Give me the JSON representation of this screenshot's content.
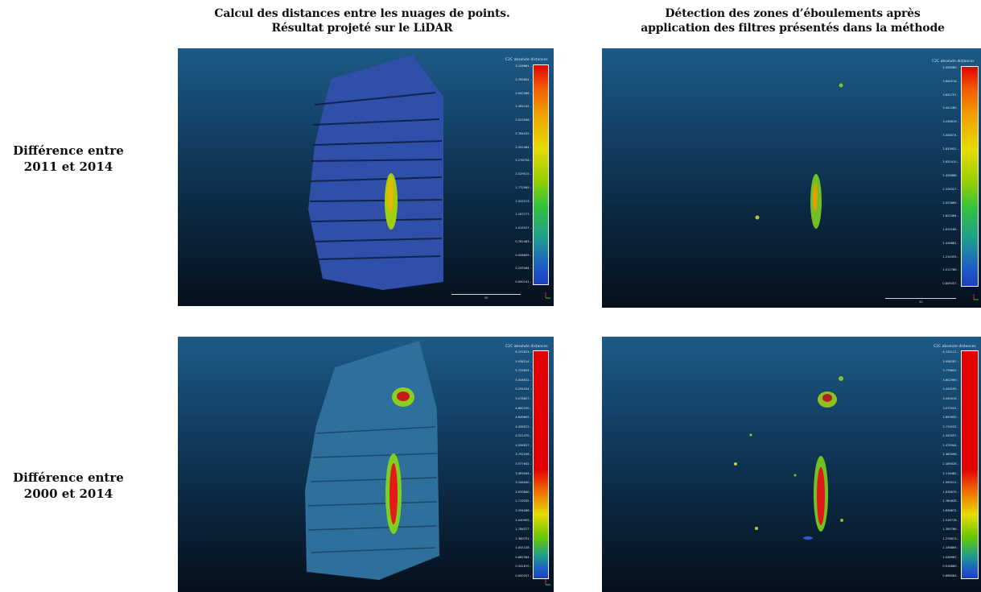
{
  "columns": [
    {
      "line1": "Calcul des distances entre les nuages de points.",
      "line2": "Résultat projeté sur le LiDAR"
    },
    {
      "line1": "Détection des zones d’éboulements après",
      "line2": "application des filtres présentés dans la méthode"
    }
  ],
  "rows": [
    {
      "line1": "Différence entre",
      "line2": "2011 et 2014"
    },
    {
      "line1": "Différence entre",
      "line2": "2000 et 2014"
    }
  ],
  "panels": [
    {
      "legend_title": "C2C absolute distances",
      "scale_label": "50",
      "ticks": [
        "3.146881",
        "2.785804",
        "2.542366",
        "2.281142",
        "2.023556",
        "2.784432",
        "2.552464",
        "2.278756",
        "2.029515",
        "1.772085",
        "1.525213",
        "1.267177",
        "1.014527",
        "0.761483",
        "0.508859",
        "0.255564",
        "0.000141"
      ]
    },
    {
      "legend_title": "C2C absolute distances",
      "scale_label": "50",
      "ticks": [
        "4.058585",
        "3.840216",
        "3.631757",
        "3.441285",
        "3.238619",
        "3.036074",
        "2.833952",
        "2.631410",
        "2.428868",
        "2.226327",
        "2.023865",
        "1.821464",
        "1.619165",
        "1.416881",
        "1.214333",
        "1.011786",
        "0.809257"
      ]
    },
    {
      "legend_title": "C2C absolute distances",
      "scale_label": "50",
      "ticks": [
        "6.152813",
        "5.938214",
        "5.725624",
        "5.508932",
        "5.294424",
        "5.078827",
        "4.862250",
        "4.646605",
        "4.436022",
        "4.221470",
        "4.096837",
        "3.792256",
        "3.577642",
        "3.363044",
        "3.148440",
        "2.933840",
        "2.719235",
        "2.294286",
        "2.040905",
        "1.786377",
        "1.360751",
        "1.001128",
        "0.681584",
        "0.341870",
        "0.000257"
      ]
    },
    {
      "legend_title": "C2C absolute distances",
      "scale_label": "50",
      "ticks": [
        "4.134111",
        "3.936287",
        "3.778842",
        "3.602969",
        "3.426195",
        "3.249416",
        "3.072531",
        "2.895850",
        "2.719232",
        "2.542557",
        "2.478944",
        "2.365096",
        "2.189028",
        "2.118482",
        "1.995511",
        "1.878079",
        "1.780828",
        "1.638672",
        "1.518718",
        "1.395766",
        "1.276813",
        "1.158864",
        "1.038967",
        "0.918889",
        "0.898083"
      ]
    }
  ]
}
